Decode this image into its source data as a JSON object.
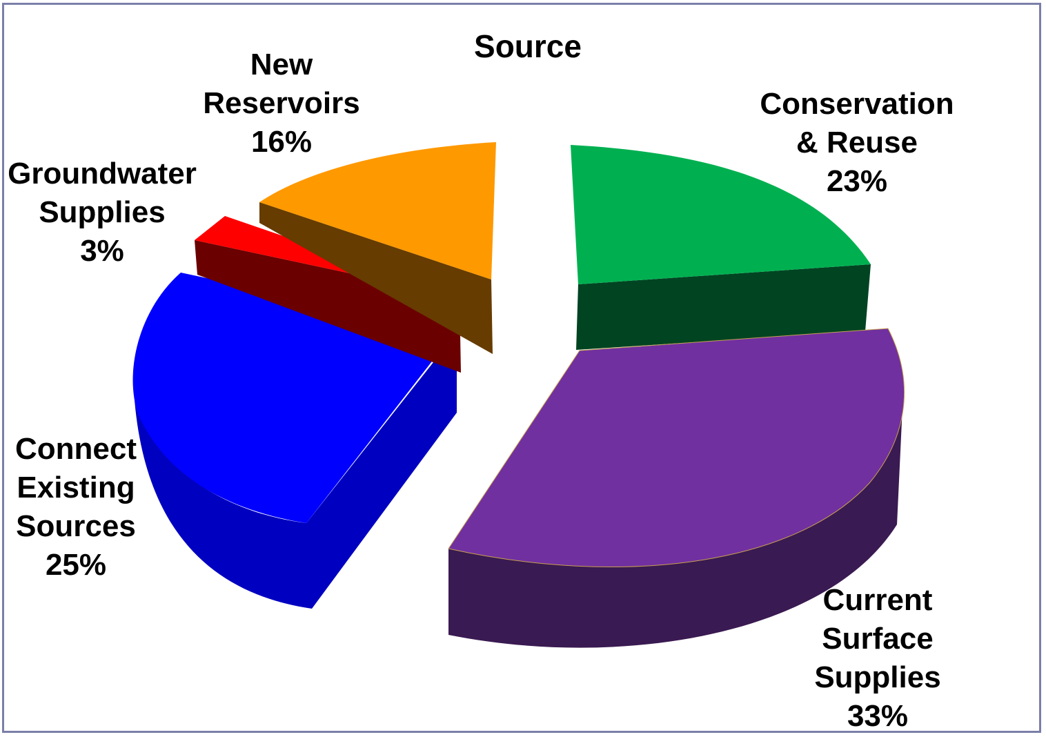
{
  "chart_data": {
    "type": "pie",
    "title": "Source",
    "style": "3d-exploded",
    "slices": [
      {
        "name": "Conservation & Reuse",
        "label_lines": [
          "Conservation",
          "& Reuse"
        ],
        "percent_label": "23%",
        "value": 23,
        "color": "#00b050",
        "side_color": "#004422"
      },
      {
        "name": "Current Surface Supplies",
        "label_lines": [
          "Current",
          "Surface",
          "Supplies"
        ],
        "percent_label": "33%",
        "value": 33,
        "color": "#7030a0",
        "side_color": "#3a1a52"
      },
      {
        "name": "Connect Existing Sources",
        "label_lines": [
          "Connect",
          "Existing",
          "Sources"
        ],
        "percent_label": "25%",
        "value": 25,
        "color": "#0000ff",
        "side_color": "#0000c0"
      },
      {
        "name": "Groundwater Supplies",
        "label_lines": [
          "Groundwater",
          "Supplies"
        ],
        "percent_label": "3%",
        "value": 3,
        "color": "#ff0000",
        "side_color": "#6b0000"
      },
      {
        "name": "New Reservoirs",
        "label_lines": [
          "New",
          "Reservoirs"
        ],
        "percent_label": "16%",
        "value": 16,
        "color": "#ff9900",
        "side_color": "#663c00"
      }
    ]
  }
}
